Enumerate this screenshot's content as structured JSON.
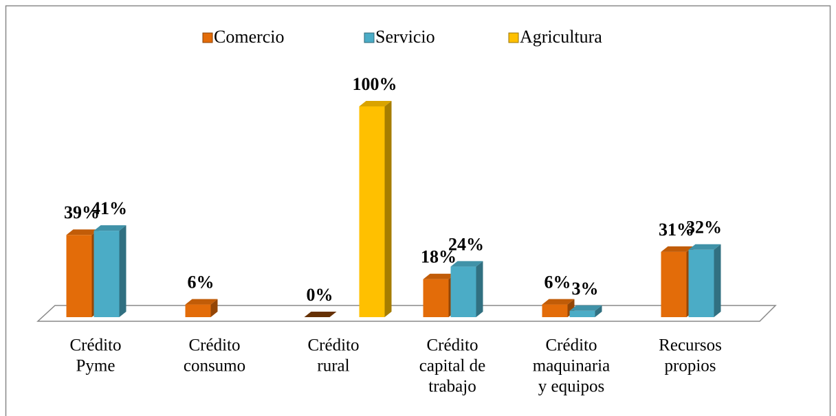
{
  "chart_data": {
    "type": "bar3d",
    "categories": [
      [
        "Crédito",
        "Pyme"
      ],
      [
        "Crédito",
        "consumo"
      ],
      [
        "Crédito",
        "rural"
      ],
      [
        "Crédito",
        "capital de",
        "trabajo"
      ],
      [
        "Crédito",
        "maquinaria",
        "y equipos"
      ],
      [
        "Recursos",
        "propios"
      ]
    ],
    "series": [
      {
        "name": "Comercio",
        "color": "#e36c09",
        "values": [
          39,
          6,
          0,
          18,
          6,
          31
        ],
        "value_labels": [
          "39%",
          "6%",
          "0%",
          "18%",
          "6%",
          "31%"
        ]
      },
      {
        "name": "Servicio",
        "color": "#4bacc6",
        "values": [
          41,
          null,
          null,
          24,
          3,
          32
        ],
        "value_labels": [
          "41%",
          null,
          null,
          "24%",
          "3%",
          "32%"
        ]
      },
      {
        "name": "Agricultura",
        "color": "#ffc000",
        "values": [
          null,
          null,
          100,
          null,
          null,
          null
        ],
        "value_labels": [
          null,
          null,
          "100%",
          null,
          null,
          null
        ]
      }
    ],
    "ylim": [
      0,
      100
    ],
    "legend": "top"
  }
}
